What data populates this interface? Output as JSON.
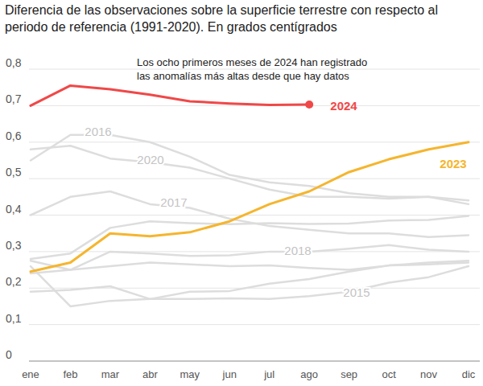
{
  "chart_data": {
    "type": "line",
    "title": "Diferencia de las observaciones sobre la superficie terrestre con respecto al periodo de referencia (1991-2020). En grados centígrados",
    "annotation": "Los ocho primeros meses de 2024 han registrado las anomalías más altas desde que hay datos",
    "categories": [
      "ene",
      "feb",
      "mar",
      "abr",
      "may",
      "jun",
      "jul",
      "ago",
      "sep",
      "oct",
      "nov",
      "dic"
    ],
    "ylim": [
      0,
      0.8
    ],
    "yticks": [
      0,
      {
        "value": 0.1,
        "label": "0,1"
      },
      {
        "value": 0.2,
        "label": "0,2"
      },
      {
        "value": 0.3,
        "label": "0,3"
      },
      {
        "value": 0.4,
        "label": "0,4"
      },
      {
        "value": 0.5,
        "label": "0,5"
      },
      {
        "value": 0.6,
        "label": "0,6"
      },
      {
        "value": 0.7,
        "label": "0,7"
      },
      {
        "value": 0.8,
        "label": "0,8"
      }
    ],
    "grid": true,
    "series": [
      {
        "name": "2016",
        "color": "#dddddd",
        "values": [
          0.55,
          0.62,
          0.62,
          0.6,
          0.56,
          0.51,
          0.49,
          0.48,
          0.46,
          0.45,
          0.45,
          0.43
        ]
      },
      {
        "name": "2020",
        "color": "#dddddd",
        "values": [
          0.58,
          0.59,
          0.555,
          0.545,
          0.53,
          0.5,
          0.47,
          0.45,
          0.45,
          0.445,
          0.45,
          0.44
        ]
      },
      {
        "name": "2017",
        "color": "#dddddd",
        "values": [
          0.4,
          0.45,
          0.465,
          0.43,
          0.42,
          0.39,
          0.37,
          0.36,
          0.35,
          0.35,
          0.34,
          0.345
        ]
      },
      {
        "color": "#dddddd",
        "values": [
          0.28,
          0.295,
          0.365,
          0.383,
          0.378,
          0.375,
          0.378,
          0.376,
          0.377,
          0.385,
          0.387,
          0.398
        ]
      },
      {
        "name": "2018",
        "color": "#dddddd",
        "values": [
          0.275,
          0.25,
          0.3,
          0.295,
          0.288,
          0.29,
          0.3,
          0.3,
          0.308,
          0.318,
          0.305,
          0.3
        ]
      },
      {
        "color": "#dddddd",
        "values": [
          0.24,
          0.25,
          0.26,
          0.27,
          0.265,
          0.26,
          0.262,
          0.255,
          0.25,
          0.262,
          0.265,
          0.27
        ]
      },
      {
        "color": "#dddddd",
        "values": [
          0.19,
          0.195,
          0.205,
          0.17,
          0.19,
          0.192,
          0.212,
          0.225,
          0.245,
          0.262,
          0.27,
          0.275
        ]
      },
      {
        "name": "2015",
        "color": "#dddddd",
        "values": [
          0.26,
          0.15,
          0.165,
          0.17,
          0.17,
          0.172,
          0.17,
          0.178,
          0.19,
          0.215,
          0.23,
          0.26
        ]
      },
      {
        "name": "2023",
        "color": "#f5b52e",
        "values": [
          0.245,
          0.27,
          0.35,
          0.342,
          0.353,
          0.383,
          0.43,
          0.465,
          0.518,
          0.553,
          0.58,
          0.6
        ]
      },
      {
        "name": "2024",
        "color": "#f04848",
        "marker": "end",
        "values": [
          0.7,
          0.755,
          0.745,
          0.73,
          0.712,
          0.706,
          0.702,
          0.703,
          null,
          null,
          null,
          null
        ]
      }
    ]
  }
}
